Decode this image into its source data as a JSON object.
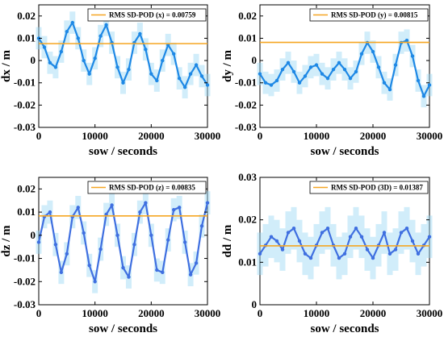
{
  "chart_data": [
    {
      "type": "line",
      "panel": "top-left",
      "xlabel": "sow / seconds",
      "ylabel": "dx / m",
      "xlim": [
        0,
        30000
      ],
      "ylim": [
        -0.03,
        0.025
      ],
      "xticks": [
        0,
        10000,
        20000,
        30000
      ],
      "yticks": [
        -0.03,
        -0.02,
        -0.01,
        0,
        0.01,
        0.02
      ],
      "xtick_labels": [
        "0",
        "10000",
        "20000",
        "30000"
      ],
      "ytick_labels": [
        "-0.03",
        "-0.02",
        "-0.01",
        "0",
        "0.01",
        "0.02"
      ],
      "legend_position": "top-right",
      "series": [
        {
          "name": "",
          "color": "#1E88E5",
          "x": [
            0,
            1000,
            2000,
            3000,
            4000,
            5000,
            6000,
            7000,
            8000,
            9000,
            10000,
            11000,
            12000,
            13000,
            14000,
            15000,
            16000,
            17000,
            18000,
            19000,
            20000,
            21000,
            22000,
            23000,
            24000,
            25000,
            26000,
            27000,
            28000,
            29000,
            30000
          ],
          "y": [
            0.01,
            0.006,
            -0.001,
            -0.003,
            0.004,
            0.013,
            0.017,
            0.01,
            0.0,
            -0.006,
            0.001,
            0.011,
            0.016,
            0.008,
            -0.003,
            -0.01,
            -0.004,
            0.008,
            0.012,
            0.005,
            -0.006,
            -0.009,
            0.0,
            0.007,
            0.003,
            -0.008,
            -0.012,
            -0.006,
            -0.002,
            -0.007,
            -0.011
          ]
        },
        {
          "name": "RMS SD-POD (x) = 0.00759",
          "color": "#F5A623",
          "x": [
            0,
            30000
          ],
          "y": [
            0.00759,
            0.00759
          ]
        }
      ]
    },
    {
      "type": "line",
      "panel": "top-right",
      "xlabel": "sow / seconds",
      "ylabel": "dy / m",
      "xlim": [
        0,
        30000
      ],
      "ylim": [
        -0.03,
        0.025
      ],
      "xticks": [
        0,
        10000,
        20000,
        30000
      ],
      "yticks": [
        -0.03,
        -0.02,
        -0.01,
        0,
        0.01,
        0.02
      ],
      "xtick_labels": [
        "0",
        "10000",
        "20000",
        "30000"
      ],
      "ytick_labels": [
        "-0.03",
        "-0.02",
        "-0.01",
        "0",
        "0.01",
        "0.02"
      ],
      "legend_position": "top-right",
      "series": [
        {
          "name": "",
          "color": "#1E88E5",
          "x": [
            0,
            1000,
            2000,
            3000,
            4000,
            5000,
            6000,
            7000,
            8000,
            9000,
            10000,
            11000,
            12000,
            13000,
            14000,
            15000,
            16000,
            17000,
            18000,
            19000,
            20000,
            21000,
            22000,
            23000,
            24000,
            25000,
            26000,
            27000,
            28000,
            29000,
            30000
          ],
          "y": [
            -0.006,
            -0.01,
            -0.011,
            -0.009,
            -0.004,
            -0.001,
            -0.005,
            -0.01,
            -0.007,
            -0.003,
            -0.002,
            -0.006,
            -0.008,
            -0.004,
            -0.001,
            -0.004,
            -0.008,
            -0.005,
            0.003,
            0.008,
            0.004,
            -0.003,
            -0.01,
            -0.013,
            -0.002,
            0.008,
            0.009,
            0.002,
            -0.009,
            -0.016,
            -0.011
          ]
        },
        {
          "name": "RMS SD-POD (y) = 0.00815",
          "color": "#F5A623",
          "x": [
            0,
            30000
          ],
          "y": [
            0.00815,
            0.00815
          ]
        }
      ]
    },
    {
      "type": "line",
      "panel": "bottom-left",
      "xlabel": "sow / seconds",
      "ylabel": "dz / m",
      "xlim": [
        0,
        30000
      ],
      "ylim": [
        -0.03,
        0.025
      ],
      "xticks": [
        0,
        10000,
        20000,
        30000
      ],
      "yticks": [
        -0.03,
        -0.02,
        -0.01,
        0,
        0.01,
        0.02
      ],
      "xtick_labels": [
        "0",
        "10000",
        "20000",
        "30000"
      ],
      "ytick_labels": [
        "-0.03",
        "-0.02",
        "-0.01",
        "0",
        "0.01",
        "0.02"
      ],
      "legend_position": "top-right",
      "series": [
        {
          "name": "",
          "color": "#3F6FE0",
          "x": [
            0,
            1000,
            2000,
            3000,
            4000,
            5000,
            6000,
            7000,
            8000,
            9000,
            10000,
            11000,
            12000,
            13000,
            14000,
            15000,
            16000,
            17000,
            18000,
            19000,
            20000,
            21000,
            22000,
            23000,
            24000,
            25000,
            26000,
            27000,
            28000,
            29000,
            30000
          ],
          "y": [
            -0.003,
            0.008,
            0.01,
            -0.004,
            -0.016,
            -0.008,
            0.008,
            0.012,
            0.001,
            -0.013,
            -0.02,
            -0.006,
            0.009,
            0.013,
            0.0,
            -0.014,
            -0.018,
            -0.004,
            0.01,
            0.014,
            0.0,
            -0.015,
            -0.016,
            -0.002,
            0.011,
            0.012,
            -0.003,
            -0.017,
            -0.012,
            0.004,
            0.014
          ]
        },
        {
          "name": "RMS SD-POD (z) = 0.00835",
          "color": "#F5A623",
          "x": [
            0,
            30000
          ],
          "y": [
            0.00835,
            0.00835
          ]
        }
      ]
    },
    {
      "type": "line",
      "panel": "bottom-right",
      "xlabel": "sow / seconds",
      "ylabel": "dd / m",
      "xlim": [
        0,
        30000
      ],
      "ylim": [
        0,
        0.03
      ],
      "xticks": [
        0,
        10000,
        20000,
        30000
      ],
      "yticks": [
        0,
        0.01,
        0.02,
        0.03
      ],
      "xtick_labels": [
        "0",
        "10000",
        "20000",
        "30000"
      ],
      "ytick_labels": [
        "0",
        "0.01",
        "0.02",
        "0.03"
      ],
      "legend_position": "top-right",
      "series": [
        {
          "name": "",
          "color": "#3F6FE0",
          "x": [
            0,
            1000,
            2000,
            3000,
            4000,
            5000,
            6000,
            7000,
            8000,
            9000,
            10000,
            11000,
            12000,
            13000,
            14000,
            15000,
            16000,
            17000,
            18000,
            19000,
            20000,
            21000,
            22000,
            23000,
            24000,
            25000,
            26000,
            27000,
            28000,
            29000,
            30000
          ],
          "y": [
            0.012,
            0.014,
            0.016,
            0.015,
            0.013,
            0.017,
            0.018,
            0.015,
            0.012,
            0.011,
            0.014,
            0.017,
            0.018,
            0.014,
            0.011,
            0.012,
            0.016,
            0.018,
            0.016,
            0.013,
            0.011,
            0.014,
            0.017,
            0.012,
            0.013,
            0.017,
            0.018,
            0.015,
            0.012,
            0.014,
            0.016
          ]
        },
        {
          "name": "RMS SD-POD (3D) = 0.01387",
          "color": "#F5A623",
          "x": [
            0,
            30000
          ],
          "y": [
            0.01387,
            0.01387
          ]
        }
      ]
    }
  ]
}
